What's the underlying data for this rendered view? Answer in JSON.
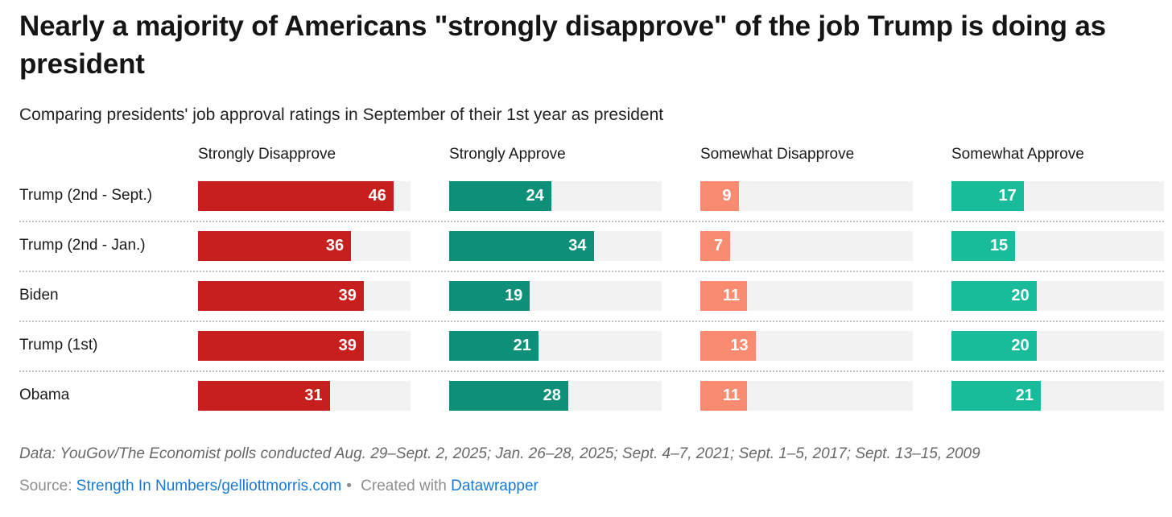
{
  "chart_data": {
    "type": "bar",
    "layout": "split-bars",
    "title": "Nearly a majority of Americans \"strongly disapprove\" of the job Trump is doing as president",
    "subtitle": "Comparing presidents' job approval ratings in September of their 1st year as president",
    "categories": [
      "Trump (2nd - Sept.)",
      "Trump (2nd - Jan.)",
      "Biden",
      "Trump (1st)",
      "Obama"
    ],
    "series": [
      {
        "name": "Strongly Disapprove",
        "color": "#c71f1d",
        "values": [
          46,
          36,
          39,
          39,
          31
        ]
      },
      {
        "name": "Strongly Approve",
        "color": "#0d9077",
        "values": [
          24,
          34,
          19,
          21,
          28
        ]
      },
      {
        "name": "Somewhat Disapprove",
        "color": "#f98b71",
        "values": [
          9,
          7,
          11,
          13,
          11
        ]
      },
      {
        "name": "Somewhat Approve",
        "color": "#18bb9a",
        "values": [
          17,
          15,
          20,
          20,
          21
        ]
      }
    ],
    "xlim": [
      0,
      50
    ],
    "grid": "off",
    "legend": "column-headers",
    "value_labels": "inside-end",
    "track_color": "#f2f2f2"
  },
  "footer": {
    "note": "Data: YouGov/The Economist polls conducted Aug. 29–Sept. 2, 2025; Jan. 26–28, 2025; Sept. 4–7, 2021; Sept. 1–5, 2017; Sept. 13–15, 2009",
    "source_label": "Source: ",
    "source_link": "Strength In Numbers/gelliottmorris.com",
    "dot": "•",
    "created_with": " Created with ",
    "tool_link": "Datawrapper"
  }
}
